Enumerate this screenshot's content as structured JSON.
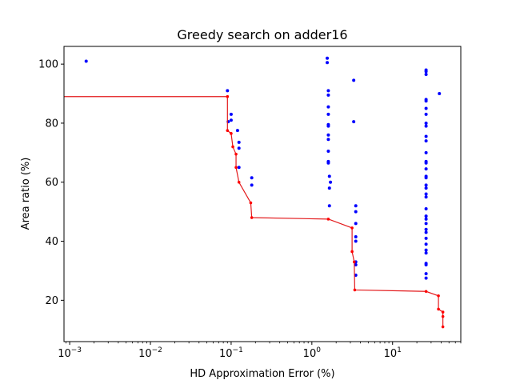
{
  "chart_data": {
    "type": "scatter",
    "title": "Greedy search on adder16",
    "xlabel": "HD Approximation Error (%)",
    "ylabel": "Area ratio (%)",
    "xscale": "log",
    "xlim": [
      0.00085,
      70
    ],
    "ylim": [
      6,
      106
    ],
    "xticks": [
      {
        "value": 0.001,
        "base": "10",
        "exp": "−3"
      },
      {
        "value": 0.01,
        "base": "10",
        "exp": "−2"
      },
      {
        "value": 0.1,
        "base": "10",
        "exp": "−1"
      },
      {
        "value": 1,
        "base": "10",
        "exp": "0"
      },
      {
        "value": 10,
        "base": "10",
        "exp": "1"
      }
    ],
    "yticks": [
      20,
      40,
      60,
      80,
      100
    ],
    "grid": false,
    "legend": "none",
    "colors": {
      "scatter": "#0000ff",
      "frontier": "#ff0000",
      "frontier_line": "#e31a1c"
    },
    "series": [
      {
        "role": "scatter",
        "points": [
          [
            0.0016,
            101
          ],
          [
            0.09,
            91
          ],
          [
            0.1,
            83
          ],
          [
            0.1,
            81
          ],
          [
            0.092,
            80.5
          ],
          [
            0.12,
            77.5
          ],
          [
            0.125,
            73.5
          ],
          [
            0.125,
            71.5
          ],
          [
            0.125,
            65
          ],
          [
            0.18,
            61.5
          ],
          [
            0.18,
            59
          ],
          [
            1.55,
            102
          ],
          [
            1.55,
            100.5
          ],
          [
            1.6,
            91
          ],
          [
            1.6,
            89.5
          ],
          [
            1.6,
            85.5
          ],
          [
            1.6,
            83
          ],
          [
            1.6,
            79.5
          ],
          [
            1.6,
            79
          ],
          [
            1.6,
            76
          ],
          [
            1.6,
            74.5
          ],
          [
            1.6,
            70.5
          ],
          [
            1.6,
            67
          ],
          [
            1.6,
            66.5
          ],
          [
            1.65,
            62
          ],
          [
            1.7,
            60
          ],
          [
            1.65,
            58
          ],
          [
            1.65,
            52
          ],
          [
            3.3,
            94.5
          ],
          [
            3.3,
            80.5
          ],
          [
            3.5,
            52
          ],
          [
            3.5,
            50
          ],
          [
            3.5,
            46
          ],
          [
            3.5,
            41.5
          ],
          [
            3.5,
            40
          ],
          [
            3.5,
            33
          ],
          [
            3.5,
            32
          ],
          [
            3.5,
            28.5
          ],
          [
            26,
            98
          ],
          [
            26,
            97.5
          ],
          [
            26,
            96.5
          ],
          [
            26,
            88
          ],
          [
            26,
            87.5
          ],
          [
            26,
            85
          ],
          [
            26,
            83
          ],
          [
            26,
            80
          ],
          [
            26,
            79
          ],
          [
            26,
            75.5
          ],
          [
            26,
            74
          ],
          [
            26,
            70
          ],
          [
            26,
            67
          ],
          [
            26,
            66.5
          ],
          [
            26,
            64.5
          ],
          [
            26,
            62
          ],
          [
            26,
            61.5
          ],
          [
            26,
            59
          ],
          [
            26,
            58
          ],
          [
            26,
            56
          ],
          [
            26,
            55
          ],
          [
            26,
            51
          ],
          [
            26,
            48.5
          ],
          [
            26,
            47.5
          ],
          [
            26,
            46
          ],
          [
            26,
            44
          ],
          [
            26,
            43
          ],
          [
            26,
            41
          ],
          [
            26,
            39
          ],
          [
            26,
            37
          ],
          [
            26,
            36
          ],
          [
            26,
            32.5
          ],
          [
            26,
            32
          ],
          [
            26,
            29
          ],
          [
            26,
            27.5
          ],
          [
            38,
            90
          ]
        ]
      },
      {
        "role": "frontier",
        "points": [
          [
            0.00085,
            89
          ],
          [
            0.09,
            89
          ],
          [
            0.09,
            77.5
          ],
          [
            0.1,
            76.5
          ],
          [
            0.105,
            72
          ],
          [
            0.115,
            69.5
          ],
          [
            0.115,
            65
          ],
          [
            0.125,
            60
          ],
          [
            0.175,
            53
          ],
          [
            0.18,
            48
          ],
          [
            1.6,
            47.5
          ],
          [
            3.15,
            44.5
          ],
          [
            3.15,
            36.5
          ],
          [
            3.35,
            33
          ],
          [
            3.4,
            23.5
          ],
          [
            26,
            23
          ],
          [
            37,
            21.5
          ],
          [
            37,
            17
          ],
          [
            42,
            16
          ],
          [
            42,
            14.5
          ],
          [
            42,
            11
          ]
        ]
      }
    ]
  }
}
